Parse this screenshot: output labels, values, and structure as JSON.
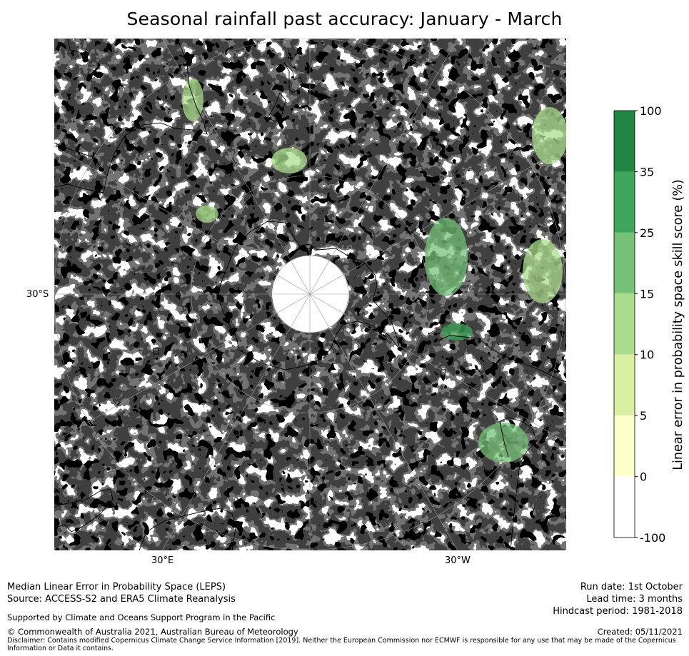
{
  "title": "Seasonal rainfall past accuracy: January - March",
  "map": {
    "lat_label": "30°S",
    "lon_labels": [
      "30°E",
      "30°W"
    ]
  },
  "legend": {
    "label": "Linear error in probability space skill score (%)",
    "ticks": [
      "100",
      "35",
      "25",
      "15",
      "10",
      "5",
      "0",
      "-100"
    ],
    "colors": [
      "#218443",
      "#3ea65a",
      "#75c278",
      "#acdd8e",
      "#d9f0a3",
      "#ffffcc",
      "#ffffff"
    ]
  },
  "footer": {
    "line1": "Median Linear Error in Probability Space (LEPS)",
    "line2": "Source: ACCESS-S2 and ERA5 Climate Reanalysis",
    "line3": "Supported by Climate and Oceans Support Program in the Pacific",
    "line4": "© Commonwealth of Australia 2021, Australian Bureau of Meteorology",
    "disclaimer": "Disclaimer: Contains modified Copernicus Climate Change Service Information [2019]. Neither the European Commission nor ECMWF is responsible for any use that may be made of the Copernicus Information or Data it contains.",
    "run_date": "Run date: 1st October",
    "lead_time": "Lead time: 3 months",
    "hindcast": "Hindcast period: 1981-2018",
    "created": "Created: 05/11/2021"
  },
  "colors": {
    "coast": "#000000",
    "grid": "#9a9a9a"
  }
}
